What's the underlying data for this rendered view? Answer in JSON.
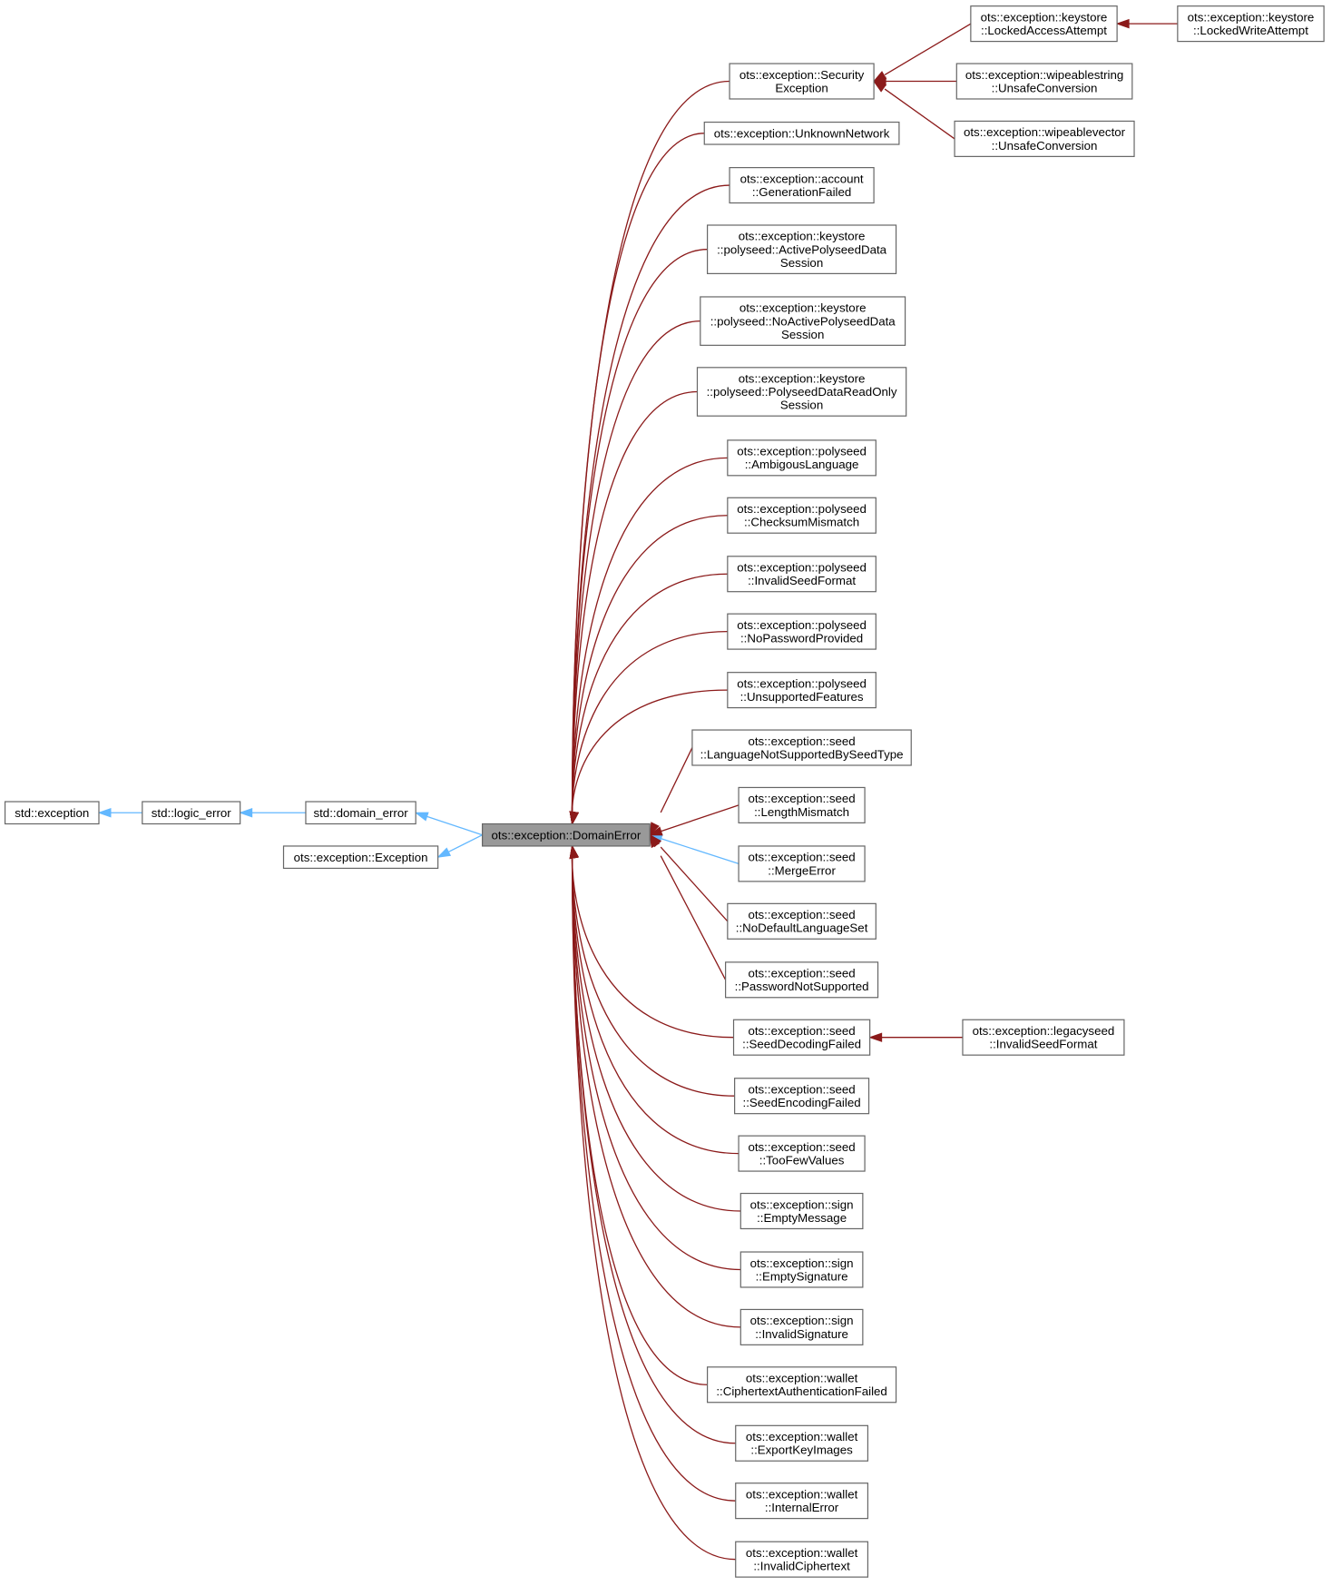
{
  "colors": {
    "inherit": "#63b8ff",
    "usage": "#8b1a1a",
    "focus_fill": "#999999",
    "border": "#666666"
  },
  "nodes": {
    "std_exception": [
      "std::exception"
    ],
    "std_logic_error": [
      "std::logic_error"
    ],
    "std_domain_error": [
      "std::domain_error"
    ],
    "ots_exception": [
      "ots::exception::Exception"
    ],
    "domain_error": [
      "ots::exception::DomainError"
    ],
    "security_exception": [
      "ots::exception::Security",
      "Exception"
    ],
    "locked_access": [
      "ots::exception::keystore",
      "::LockedAccessAttempt"
    ],
    "locked_write": [
      "ots::exception::keystore",
      "::LockedWriteAttempt"
    ],
    "wipeable_string": [
      "ots::exception::wipeablestring",
      "::UnsafeConversion"
    ],
    "wipeable_vector": [
      "ots::exception::wipeablevector",
      "::UnsafeConversion"
    ],
    "unknown_network": [
      "ots::exception::UnknownNetwork"
    ],
    "generation_failed": [
      "ots::exception::account",
      "::GenerationFailed"
    ],
    "active_polyseed": [
      "ots::exception::keystore",
      "::polyseed::ActivePolyseedData",
      "Session"
    ],
    "no_active_polyseed": [
      "ots::exception::keystore",
      "::polyseed::NoActivePolyseedData",
      "Session"
    ],
    "polyseed_readonly": [
      "ots::exception::keystore",
      "::polyseed::PolyseedDataReadOnly",
      "Session"
    ],
    "ambigous_language": [
      "ots::exception::polyseed",
      "::AmbigousLanguage"
    ],
    "checksum_mismatch": [
      "ots::exception::polyseed",
      "::ChecksumMismatch"
    ],
    "invalid_seed_format_p": [
      "ots::exception::polyseed",
      "::InvalidSeedFormat"
    ],
    "no_password": [
      "ots::exception::polyseed",
      "::NoPasswordProvided"
    ],
    "unsupported_features": [
      "ots::exception::polyseed",
      "::UnsupportedFeatures"
    ],
    "language_not_supported": [
      "ots::exception::seed",
      "::LanguageNotSupportedBySeedType"
    ],
    "length_mismatch": [
      "ots::exception::seed",
      "::LengthMismatch"
    ],
    "merge_error": [
      "ots::exception::seed",
      "::MergeError"
    ],
    "no_default_language": [
      "ots::exception::seed",
      "::NoDefaultLanguageSet"
    ],
    "password_not_supported": [
      "ots::exception::seed",
      "::PasswordNotSupported"
    ],
    "seed_decoding_failed": [
      "ots::exception::seed",
      "::SeedDecodingFailed"
    ],
    "legacy_invalid_seed": [
      "ots::exception::legacyseed",
      "::InvalidSeedFormat"
    ],
    "seed_encoding_failed": [
      "ots::exception::seed",
      "::SeedEncodingFailed"
    ],
    "too_few_values": [
      "ots::exception::seed",
      "::TooFewValues"
    ],
    "empty_message": [
      "ots::exception::sign",
      "::EmptyMessage"
    ],
    "empty_signature": [
      "ots::exception::sign",
      "::EmptySignature"
    ],
    "invalid_signature": [
      "ots::exception::sign",
      "::InvalidSignature"
    ],
    "ciphertext_auth": [
      "ots::exception::wallet",
      "::CiphertextAuthenticationFailed"
    ],
    "export_key_images": [
      "ots::exception::wallet",
      "::ExportKeyImages"
    ],
    "internal_error": [
      "ots::exception::wallet",
      "::InternalError"
    ],
    "invalid_ciphertext": [
      "ots::exception::wallet",
      "::InvalidCiphertext"
    ]
  }
}
